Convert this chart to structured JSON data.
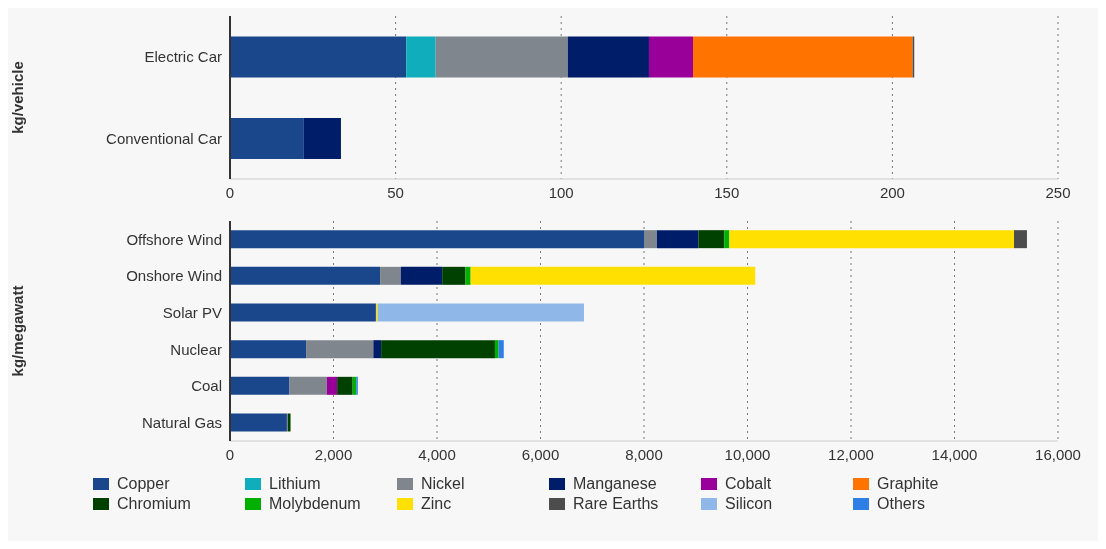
{
  "chart_data": [
    {
      "type": "bar",
      "orientation": "horizontal",
      "stacked": true,
      "ylabel": "kg/vehicle",
      "categories": [
        "Electric Car",
        "Conventional Car"
      ],
      "xlim": [
        0,
        250
      ],
      "xticks": [
        0,
        50,
        100,
        150,
        200,
        250
      ],
      "grid": "x",
      "legend": "bottom",
      "series": [
        {
          "name": "Copper",
          "color": "#1a478c",
          "values": [
            53.2,
            22.3
          ]
        },
        {
          "name": "Lithium",
          "color": "#10adbd",
          "values": [
            8.9,
            null
          ]
        },
        {
          "name": "Nickel",
          "color": "#7f868d",
          "values": [
            39.9,
            null
          ]
        },
        {
          "name": "Manganese",
          "color": "#001d6a",
          "values": [
            24.5,
            11.2
          ]
        },
        {
          "name": "Cobalt",
          "color": "#990099",
          "values": [
            13.3,
            null
          ]
        },
        {
          "name": "Graphite",
          "color": "#ff7300",
          "values": [
            66.3,
            null
          ]
        },
        {
          "name": "Rare Earths",
          "color": "#4d4d4d",
          "values": [
            0.5,
            null
          ]
        }
      ]
    },
    {
      "type": "bar",
      "orientation": "horizontal",
      "stacked": true,
      "ylabel": "kg/megawatt",
      "categories": [
        "Offshore Wind",
        "Onshore Wind",
        "Solar PV",
        "Nuclear",
        "Coal",
        "Natural Gas"
      ],
      "xlim": [
        0,
        16000
      ],
      "xticks": [
        0,
        {
          "value": 2000,
          "label": "2,000"
        },
        {
          "value": 4000,
          "label": "4,000"
        },
        {
          "value": 6000,
          "label": "6,000"
        },
        {
          "value": 8000,
          "label": "8,000"
        },
        {
          "value": 10000,
          "label": "10,000"
        },
        {
          "value": 12000,
          "label": "12,000"
        },
        {
          "value": 14000,
          "label": "14,000"
        },
        {
          "value": 16000,
          "label": "16,000"
        }
      ],
      "grid": "x",
      "legend": "bottom",
      "series": [
        {
          "name": "Copper",
          "color": "#1a478c",
          "values": [
            8000,
            2900,
            2820,
            1470,
            1150,
            1100
          ]
        },
        {
          "name": "Nickel",
          "color": "#7f868d",
          "values": [
            250,
            400,
            null,
            1300,
            720,
            20
          ]
        },
        {
          "name": "Manganese",
          "color": "#001d6a",
          "values": [
            800,
            800,
            null,
            150,
            null,
            null
          ]
        },
        {
          "name": "Cobalt",
          "color": "#990099",
          "values": [
            null,
            null,
            null,
            null,
            200,
            null
          ]
        },
        {
          "name": "Chromium",
          "color": "#004000",
          "values": [
            500,
            450,
            null,
            2200,
            300,
            50
          ]
        },
        {
          "name": "Molybdenum",
          "color": "#00b000",
          "values": [
            100,
            100,
            null,
            70,
            70,
            null
          ]
        },
        {
          "name": "Zinc",
          "color": "#ffe000",
          "values": [
            5500,
            5500,
            30,
            null,
            null,
            null
          ]
        },
        {
          "name": "Rare Earths",
          "color": "#4d4d4d",
          "values": [
            250,
            null,
            null,
            null,
            null,
            null
          ]
        },
        {
          "name": "Silicon",
          "color": "#8fb8e8",
          "values": [
            null,
            null,
            3990,
            null,
            null,
            null
          ]
        },
        {
          "name": "Others",
          "color": "#2f7ee8",
          "values": [
            null,
            null,
            null,
            100,
            30,
            null
          ]
        }
      ]
    }
  ]
}
